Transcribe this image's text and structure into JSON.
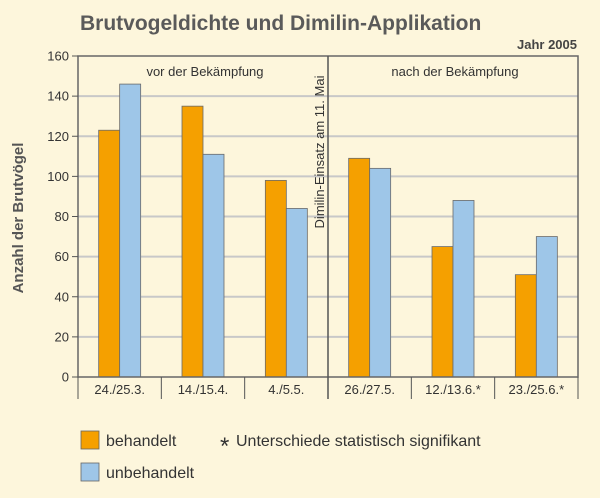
{
  "chart_data": {
    "type": "bar",
    "title": "Brutvogeldichte und Dimilin-Applikation",
    "subtitle": "Jahr 2005",
    "ylabel": "Anzahl der Brutvögel",
    "ylim": [
      0,
      160
    ],
    "yticks": [
      0,
      20,
      40,
      60,
      80,
      100,
      120,
      140,
      160
    ],
    "categories": [
      "24./25.3.",
      "14./15.4.",
      "4./5.5.",
      "26./27.5.",
      "12./13.6.*",
      "23./25.6.*"
    ],
    "series": [
      {
        "name": "behandelt",
        "color": "#f5a000",
        "values": [
          123,
          135,
          98,
          109,
          65,
          51
        ]
      },
      {
        "name": "unbehandelt",
        "color": "#9ec6e8",
        "values": [
          146,
          111,
          84,
          104,
          88,
          70
        ]
      }
    ],
    "panels": [
      {
        "label": "vor der Bekämpfung",
        "categories": [
          0,
          1,
          2
        ]
      },
      {
        "label": "nach der Bekämpfung",
        "categories": [
          3,
          4,
          5
        ]
      }
    ],
    "divider_label": "Dimilin-Einsatz am 11. Mai",
    "grid": true,
    "legend_position": "bottom-left",
    "footnote": {
      "symbol": "*",
      "text": "Unterschiede statistisch signifikant"
    }
  }
}
